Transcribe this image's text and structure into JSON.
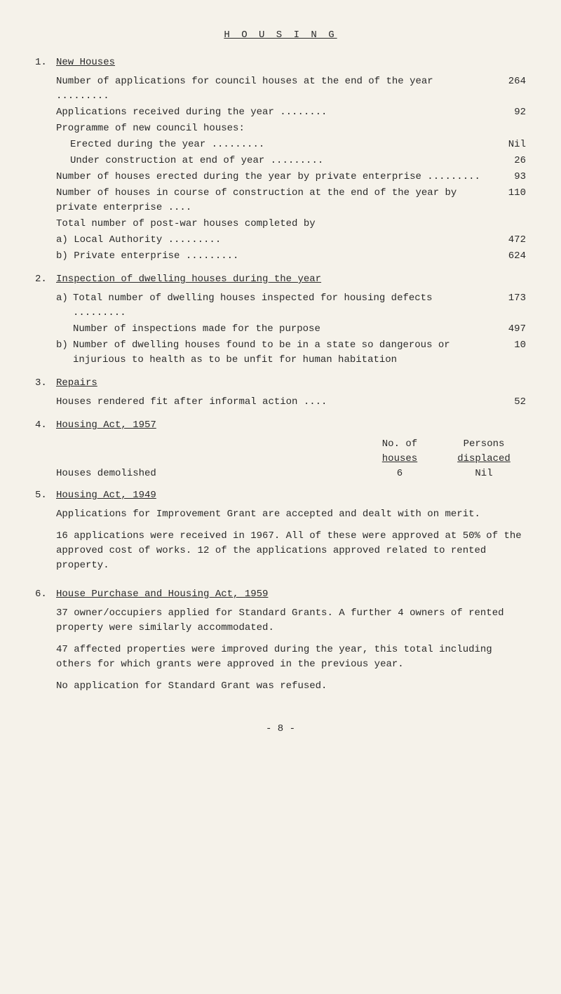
{
  "title": "H O U S I N G",
  "sections": {
    "s1": {
      "num": "1.",
      "heading": "New Houses",
      "r1": {
        "label": "Number of applications for council houses at the end of the year              .........",
        "val": "264"
      },
      "r2": {
        "label": "Applications received during the year ........",
        "val": "92"
      },
      "r3a": {
        "label": "Programme of new council houses:"
      },
      "r3b": {
        "label": "Erected during the year              .........",
        "val": "Nil"
      },
      "r4": {
        "label": "Under construction at end of year  .........",
        "val": "26"
      },
      "r5": {
        "label": "Number of houses erected during the year by private enterprise                .........",
        "val": "93"
      },
      "r6": {
        "label": "Number of houses in course of construction at the end of the year by private enterprise ....",
        "val": "110"
      },
      "r7": {
        "label": "Total number of post-war houses completed by"
      },
      "r8": {
        "label": "a) Local Authority                   .........",
        "val": "472"
      },
      "r9": {
        "label": "b) Private enterprise                .........",
        "val": "624"
      }
    },
    "s2": {
      "num": "2.",
      "heading": "Inspection of dwelling houses during the year",
      "a": {
        "letter": "a)",
        "r1": {
          "label": "Total number of dwelling houses inspected for housing defects      .........",
          "val": "173"
        },
        "r2": {
          "label": "Number of inspections made for the purpose",
          "val": "497"
        }
      },
      "b": {
        "letter": "b)",
        "r1": {
          "label": "Number of dwelling houses found to be in a state so dangerous or injurious to health as to be unfit for human habitation",
          "val": "10"
        }
      }
    },
    "s3": {
      "num": "3.",
      "heading": "Repairs",
      "r1": {
        "label": "Houses rendered fit after informal action ....",
        "val": "52"
      }
    },
    "s4": {
      "num": "4.",
      "heading": "Housing Act, 1957",
      "th1": "No. of",
      "th1b": "houses",
      "th2": "Persons",
      "th2b": "displaced",
      "row1_label": "Houses demolished",
      "row1_c2": "6",
      "row1_c3": "Nil"
    },
    "s5": {
      "num": "5.",
      "heading": "Housing Act, 1949",
      "p1": "Applications for Improvement Grant are accepted and dealt with on merit.",
      "p2": "16 applications were received in 1967.  All of these were approved at 50% of the approved cost of works.   12 of the applications approved related to rented property."
    },
    "s6": {
      "num": "6.",
      "heading": "House Purchase and Housing Act, 1959",
      "p1": "37 owner/occupiers applied for Standard Grants. A further 4 owners of rented property were similarly accommodated.",
      "p2": "47 affected properties were improved during the year, this total including others for which grants were approved in the previous year.",
      "p3": "No application for Standard Grant was refused."
    }
  },
  "footer": "- 8 -"
}
